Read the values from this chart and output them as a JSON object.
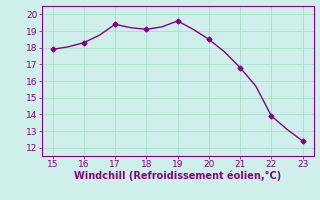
{
  "x": [
    15,
    15.5,
    16,
    16.5,
    17,
    17.5,
    18,
    18.5,
    19,
    19.5,
    20,
    20.5,
    21,
    21.5,
    22,
    22.5,
    23
  ],
  "y": [
    17.9,
    18.05,
    18.3,
    18.75,
    19.4,
    19.2,
    19.1,
    19.25,
    19.6,
    19.1,
    18.5,
    17.75,
    16.8,
    15.7,
    13.9,
    13.1,
    12.4
  ],
  "line_color": "#880088",
  "marker": "D",
  "marker_size": 2.5,
  "marker_points": [
    15,
    16,
    17,
    18,
    19,
    20,
    21,
    22,
    23
  ],
  "marker_y": [
    17.9,
    18.3,
    19.4,
    19.1,
    19.6,
    18.5,
    16.8,
    13.9,
    12.4
  ],
  "bg_color": "#cff0ea",
  "grid_color": "#aaddcc",
  "xlabel": "Windchill (Refroidissement éolien,°C)",
  "xlabel_color": "#880088",
  "xlabel_fontsize": 7,
  "tick_color": "#880088",
  "tick_fontsize": 6.5,
  "xlim": [
    14.65,
    23.35
  ],
  "ylim": [
    11.5,
    20.5
  ],
  "xticks": [
    15,
    16,
    17,
    18,
    19,
    20,
    21,
    22,
    23
  ],
  "yticks": [
    12,
    13,
    14,
    15,
    16,
    17,
    18,
    19,
    20
  ],
  "line_width": 1.0
}
